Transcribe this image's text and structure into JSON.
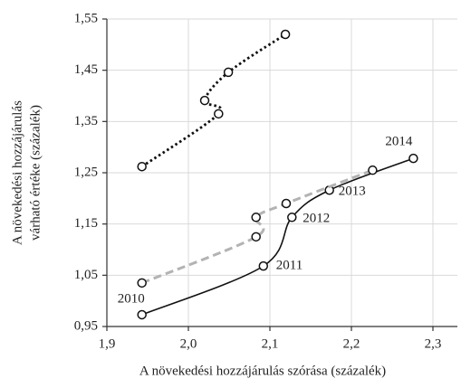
{
  "chart_data": {
    "type": "scatter",
    "xlabel": "A növekedési hozzájárulás szórása (százalék)",
    "ylabel": [
      "A növekedési hozzájárulás",
      "várható értéke (százalék)"
    ],
    "xlim": [
      1.9,
      2.33
    ],
    "ylim": [
      0.95,
      1.55
    ],
    "xticks": [
      {
        "value": 1.9,
        "label": "1,9"
      },
      {
        "value": 2.0,
        "label": "2,0"
      },
      {
        "value": 2.1,
        "label": "2,1"
      },
      {
        "value": 2.2,
        "label": "2,2"
      },
      {
        "value": 2.3,
        "label": "2,3"
      }
    ],
    "yticks": [
      {
        "value": 0.95,
        "label": "0,95"
      },
      {
        "value": 1.05,
        "label": "1,05"
      },
      {
        "value": 1.15,
        "label": "1,15"
      },
      {
        "value": 1.25,
        "label": "1,25"
      },
      {
        "value": 1.35,
        "label": "1,35"
      },
      {
        "value": 1.45,
        "label": "1,45"
      },
      {
        "value": 1.55,
        "label": "1,55"
      }
    ],
    "grid": true,
    "series": [
      {
        "color": "#111111",
        "dash": "solid",
        "x": [
          1.943,
          2.092,
          2.127,
          2.173,
          2.276
        ],
        "values": [
          0.973,
          1.068,
          1.163,
          1.216,
          1.278
        ],
        "point_labels": [
          "2010",
          "2011",
          "2012",
          "2013",
          "2014"
        ]
      },
      {
        "color": "#b3b3b3",
        "dash": "dashed",
        "x": [
          1.943,
          2.083,
          2.083,
          2.12,
          2.226
        ],
        "values": [
          1.035,
          1.125,
          1.163,
          1.19,
          1.255
        ]
      },
      {
        "color": "#111111",
        "dash": "dotted",
        "x": [
          1.943,
          2.037,
          2.02,
          2.049,
          2.119
        ],
        "values": [
          1.262,
          1.365,
          1.391,
          1.446,
          1.52
        ]
      }
    ]
  }
}
